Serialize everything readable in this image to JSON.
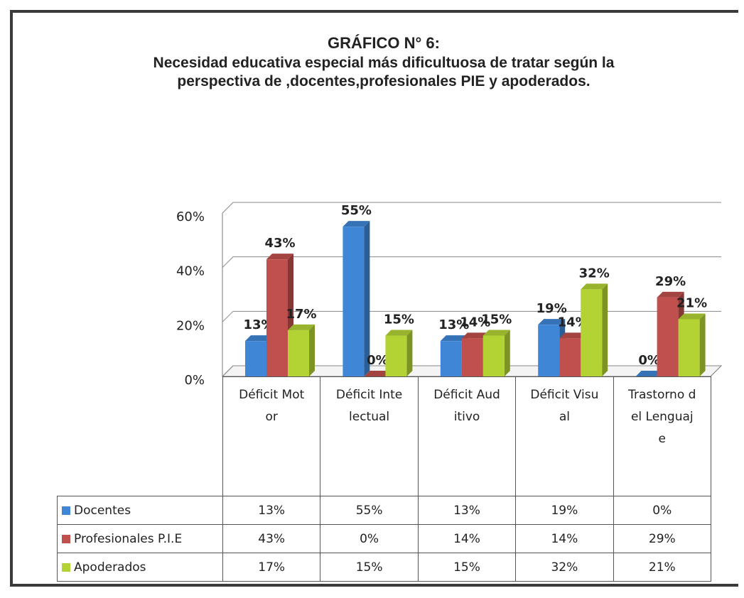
{
  "chart_data": {
    "type": "bar",
    "title": "GRÁFICO N° 6:",
    "subtitle": "Necesidad educativa especial más dificultuosa de tratar según la perspectiva de ,docentes,profesionales PIE y apoderados.",
    "categories": [
      "Déficit Motor",
      "Déficit Intelectual",
      "Déficit Auditivo",
      "Déficit Visual",
      "Trastorno del Lenguaje"
    ],
    "series": [
      {
        "name": "Docentes",
        "color": "#3f86d6",
        "values": [
          13,
          55,
          13,
          19,
          0
        ],
        "value_labels": [
          "13%",
          "55%",
          "13%",
          "19%",
          "0%"
        ]
      },
      {
        "name": "Profesionales P.I.E",
        "color": "#c0504d",
        "values": [
          43,
          0,
          14,
          14,
          29
        ],
        "value_labels": [
          "43%",
          "0%",
          "14%",
          "14%",
          "29%"
        ]
      },
      {
        "name": "Apoderados",
        "color": "#b3d335",
        "values": [
          17,
          15,
          15,
          32,
          21
        ],
        "value_labels": [
          "17%",
          "15%",
          "15%",
          "32%",
          "21%"
        ]
      }
    ],
    "ylim": [
      0,
      60
    ],
    "yticks": [
      {
        "value": 0,
        "label": "0%"
      },
      {
        "value": 20,
        "label": "20%"
      },
      {
        "value": 40,
        "label": "40%"
      },
      {
        "value": 60,
        "label": "60%"
      }
    ],
    "grid": true
  }
}
